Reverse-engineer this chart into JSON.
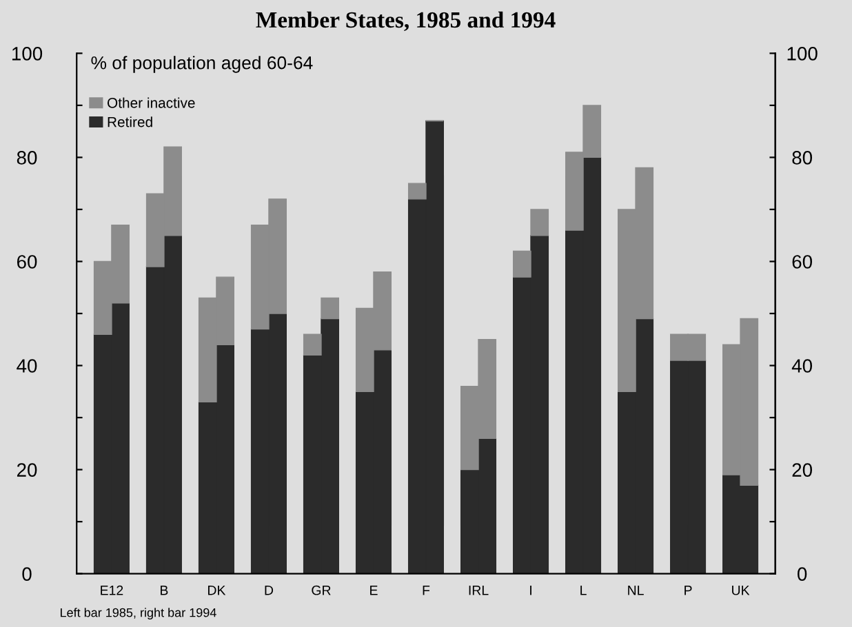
{
  "chart_data": {
    "type": "bar",
    "stacked": true,
    "title": "Member States, 1985 and 1994",
    "subtitle": "% of population aged 60-64",
    "annotations": [
      "Left bar 1985, right bar 1994"
    ],
    "categories": [
      "E12",
      null,
      null,
      "B",
      null,
      null,
      "DK",
      null,
      null,
      "D",
      null,
      null,
      "GR",
      null,
      null,
      "E",
      null,
      null,
      "F",
      null,
      null,
      "IRL",
      null,
      null,
      "I",
      null,
      null,
      "L",
      null,
      null,
      "NL",
      null,
      null,
      "P",
      null,
      null,
      "UK",
      null
    ],
    "series": [
      {
        "name": "Retired",
        "color": "#2b2b2b",
        "values": [
          46,
          52,
          null,
          59,
          65,
          null,
          33,
          44,
          null,
          47,
          50,
          null,
          42,
          49,
          null,
          35,
          43,
          null,
          72,
          87,
          null,
          20,
          26,
          null,
          57,
          65,
          null,
          66,
          80,
          null,
          35,
          49,
          null,
          41,
          41,
          null,
          19,
          17
        ]
      },
      {
        "name": "Other inactive",
        "color": "#8c8c8c",
        "values": [
          14,
          15,
          null,
          14,
          17,
          null,
          20,
          13,
          null,
          20,
          22,
          null,
          4,
          4,
          null,
          16,
          15,
          null,
          3,
          0,
          null,
          16,
          19,
          null,
          5,
          5,
          null,
          15,
          10,
          null,
          35,
          29,
          null,
          5,
          5,
          null,
          25,
          32
        ]
      }
    ],
    "ylim": [
      0,
      100
    ],
    "yticks": [
      0,
      {
        "value": 10,
        "label": null
      },
      20,
      {
        "value": 30,
        "label": null
      },
      40,
      {
        "value": 50,
        "label": null
      },
      60,
      {
        "value": 70,
        "label": null
      },
      80,
      {
        "value": 90,
        "label": null
      },
      100
    ],
    "y2lim": [
      0,
      100
    ],
    "y2ticks": [
      0,
      {
        "value": 10,
        "label": null
      },
      20,
      {
        "value": 30,
        "label": null
      },
      40,
      {
        "value": 50,
        "label": null
      },
      60,
      {
        "value": 70,
        "label": null
      },
      80,
      {
        "value": 90,
        "label": null
      },
      100
    ],
    "legend": "top left",
    "grid": false
  }
}
